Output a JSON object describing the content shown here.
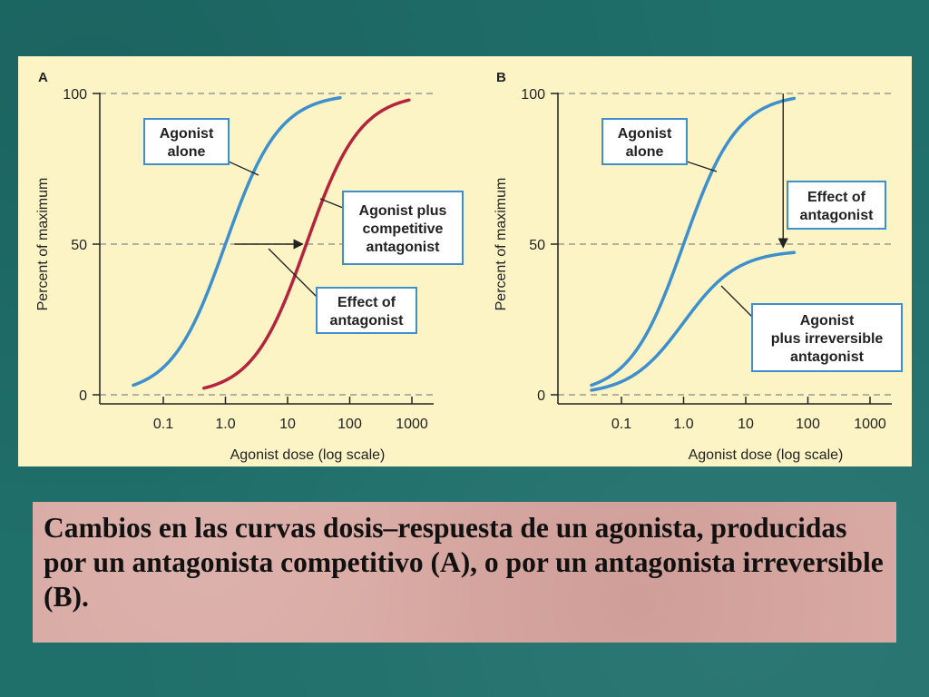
{
  "colors": {
    "blue_curve": "#3e8fce",
    "red_curve": "#b5233d",
    "panel_bg": "#fdf4c6",
    "teal_bg": "#1f6f6b",
    "caption_bg": "#d9a9a3"
  },
  "caption": "Cambios en las curvas dosis–respuesta de un agonista, producidas por un antagonista competitivo (A), o por un antagonista irreversible (B).",
  "chart_data": [
    {
      "type": "line",
      "panel_label": "A",
      "xlabel": "Agonist dose (log scale)",
      "ylabel": "Percent of maximum",
      "x_scale": "log",
      "x_ticks": [
        0.1,
        1.0,
        10,
        100,
        1000
      ],
      "x_tick_labels": [
        "0.1",
        "1.0",
        "10",
        "100",
        "1000"
      ],
      "y_ticks": [
        0,
        50,
        100
      ],
      "y_tick_labels": [
        "0",
        "50",
        "100"
      ],
      "ylim": [
        0,
        100
      ],
      "dashed_gridlines_at": [
        0,
        50,
        100
      ],
      "series": [
        {
          "key": "alone",
          "color": "#3e8fce",
          "ec50": 1.0,
          "x_min": 0.033,
          "x_max": 70
        },
        {
          "key": "competitive",
          "color": "#b5233d",
          "ec50": 20,
          "x_min": 0.45,
          "x_max": 900
        }
      ],
      "annotations": [
        {
          "key": "agonist-alone-label",
          "lines": [
            "Agonist",
            "alone"
          ]
        },
        {
          "key": "competitive-label",
          "lines": [
            "Agonist plus",
            "competitive",
            "antagonist"
          ]
        },
        {
          "key": "effect-label",
          "lines": [
            "Effect of",
            "antagonist"
          ]
        }
      ],
      "arrow": {
        "from": [
          1.0,
          50
        ],
        "to": [
          20,
          50
        ]
      }
    },
    {
      "type": "line",
      "panel_label": "B",
      "xlabel": "Agonist dose (log scale)",
      "ylabel": "Percent of maximum",
      "x_scale": "log",
      "x_ticks": [
        0.1,
        1.0,
        10,
        100,
        1000
      ],
      "x_tick_labels": [
        "0.1",
        "1.0",
        "10",
        "100",
        "1000"
      ],
      "y_ticks": [
        0,
        50,
        100
      ],
      "y_tick_labels": [
        "0",
        "50",
        "100"
      ],
      "ylim": [
        0,
        100
      ],
      "dashed_gridlines_at": [
        0,
        50,
        100
      ],
      "series": [
        {
          "key": "alone",
          "color": "#3e8fce",
          "ec50": 1.0,
          "max": 100,
          "x_min": 0.033,
          "x_max": 60
        },
        {
          "key": "irreversible",
          "color": "#3e8fce",
          "ec50": 1.0,
          "max": 48,
          "x_min": 0.033,
          "x_max": 60
        }
      ],
      "annotations": [
        {
          "key": "agonist-alone-label",
          "lines": [
            "Agonist",
            "alone"
          ]
        },
        {
          "key": "effect-label",
          "lines": [
            "Effect of",
            "antagonist"
          ]
        },
        {
          "key": "irreversible-label",
          "lines": [
            "Agonist",
            "plus irreversible",
            "antagonist"
          ]
        }
      ],
      "arrow": {
        "from": [
          40,
          100
        ],
        "to": [
          40,
          48
        ]
      }
    }
  ]
}
